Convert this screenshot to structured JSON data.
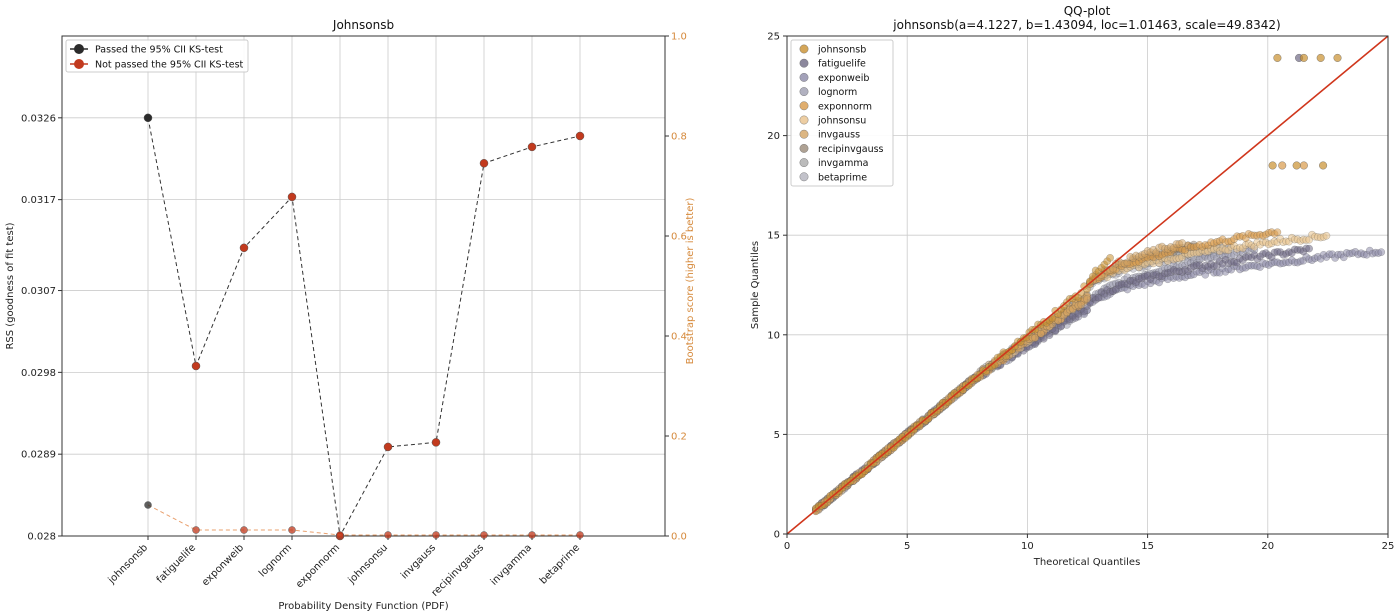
{
  "chart_data": [
    {
      "type": "line",
      "title": "Johnsonsb",
      "xlabel": "Probability Density Function (PDF)",
      "ylabel": "RSS (goodness of fit test)",
      "y2label": "Bootstrap score (higher is better)",
      "categories": [
        "johnsonsb",
        "fatiguelife",
        "exponweib",
        "lognorm",
        "exponnorm",
        "johnsonsu",
        "invgauss",
        "recipinvgauss",
        "invgamma",
        "betaprime"
      ],
      "ylim": [
        0.028,
        0.0335
      ],
      "yticks": [
        "0.028",
        "0.0289",
        "0.0298",
        "0.0307",
        "0.0317",
        "0.0326"
      ],
      "y2lim": [
        0.0,
        1.0
      ],
      "y2ticks": [
        "0.0",
        "0.2",
        "0.4",
        "0.6",
        "0.8",
        "1.0"
      ],
      "grid": true,
      "legend_position": "top-left",
      "legend": [
        "Passed the 95% CII KS-test",
        "Not passed the 95% CII KS-test"
      ],
      "series": [
        {
          "axis": "left",
          "color": "#333333",
          "values": [
            0.0326,
            0.02987,
            0.03117,
            0.03173,
            0.028,
            0.02898,
            0.02903,
            0.0321,
            0.03228,
            0.0324
          ],
          "passed": [
            true,
            false,
            false,
            false,
            false,
            false,
            false,
            false,
            false,
            false
          ]
        },
        {
          "axis": "right",
          "color": "#e9a06e",
          "values": [
            0.062,
            0.012,
            0.012,
            0.012,
            0.002,
            0.002,
            0.002,
            0.002,
            0.002,
            0.002
          ],
          "passed": [
            true,
            false,
            false,
            false,
            false,
            false,
            false,
            false,
            false,
            false
          ]
        }
      ],
      "colors": {
        "passed": "#2b2b2b",
        "not_passed": "#c23a1e",
        "right_axis": "#d68a3c"
      }
    },
    {
      "type": "scatter",
      "title": "QQ-plot",
      "subtitle": "johnsonsb(a=4.1227, b=1.43094, loc=1.01463, scale=49.8342)",
      "xlabel": "Theoretical Quantiles",
      "ylabel": "Sample Quantiles",
      "xlim": [
        0,
        25
      ],
      "ylim": [
        0,
        25
      ],
      "xticks": [
        "0",
        "5",
        "10",
        "15",
        "20",
        "25"
      ],
      "yticks": [
        "0",
        "5",
        "10",
        "15",
        "20",
        "25"
      ],
      "grid": true,
      "legend_position": "top-left",
      "reference_line": {
        "x": [
          0,
          25
        ],
        "y": [
          0,
          25
        ],
        "color": "#d0361c"
      },
      "series": [
        {
          "name": "johnsonsb",
          "color": "#c9902f",
          "ends": [
            13.5,
            13.8
          ],
          "out_x": [
            20.4,
            21.5,
            22.2,
            22.9,
            20.2,
            21.2,
            22.3
          ],
          "out_y": [
            23.9,
            23.9,
            23.9,
            23.9,
            18.5,
            18.5,
            18.5
          ]
        },
        {
          "name": "fatiguelife",
          "color": "#6f6a85",
          "ends": [
            21.8,
            14.3
          ],
          "out_x": [
            21.3
          ],
          "out_y": [
            23.9
          ]
        },
        {
          "name": "exponweib",
          "color": "#8c8aa8",
          "ends": [
            24.8,
            14.2
          ],
          "out_x": [],
          "out_y": []
        },
        {
          "name": "lognorm",
          "color": "#9d9db0",
          "ends": [
            19.5,
            14.3
          ],
          "out_x": [],
          "out_y": []
        },
        {
          "name": "exponnorm",
          "color": "#d89a4a",
          "ends": [
            20.5,
            15.2
          ],
          "out_x": [
            20.6,
            21.5
          ],
          "out_y": [
            18.5,
            18.5
          ]
        },
        {
          "name": "johnsonsu",
          "color": "#e8c28c",
          "ends": [
            22.5,
            15.0
          ],
          "out_x": [],
          "out_y": []
        },
        {
          "name": "invgauss",
          "color": "#d3a464",
          "ends": [
            16.5,
            14.6
          ],
          "out_x": [],
          "out_y": []
        },
        {
          "name": "recipinvgauss",
          "color": "#9a8a78",
          "ends": [
            17.0,
            14.5
          ],
          "out_x": [],
          "out_y": []
        },
        {
          "name": "invgamma",
          "color": "#aaaaaa",
          "ends": [
            18.0,
            14.4
          ],
          "out_x": [],
          "out_y": []
        },
        {
          "name": "betaprime",
          "color": "#b3b3bd",
          "ends": [
            18.5,
            14.3
          ],
          "out_x": [],
          "out_y": []
        }
      ]
    }
  ]
}
